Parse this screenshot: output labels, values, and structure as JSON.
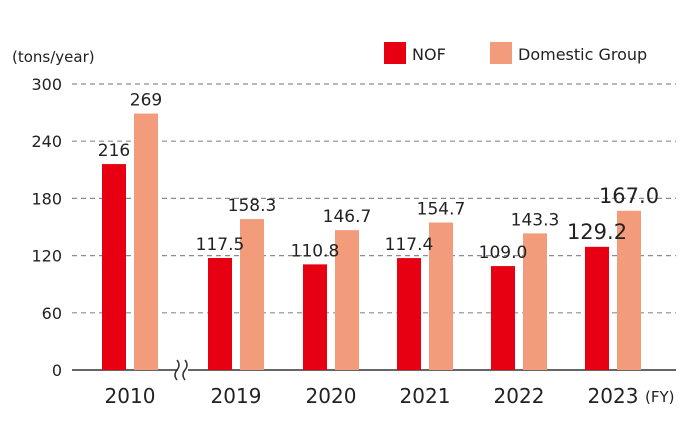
{
  "chart_data": {
    "type": "bar",
    "ylabel": "(tons/year)",
    "xunit": "(FY)",
    "ylim": [
      0,
      300
    ],
    "yticks": [
      0,
      60,
      120,
      180,
      240,
      300
    ],
    "grid": "horizontal-dashed",
    "legend_position": "top-right",
    "categories": [
      "2010",
      "2019",
      "2020",
      "2021",
      "2022",
      "2023"
    ],
    "axis_break_after": "2010",
    "series": [
      {
        "name": "NOF",
        "color": "#e60012",
        "values": [
          216,
          117.5,
          110.8,
          117.4,
          109.0,
          129.2
        ],
        "labels": [
          "216",
          "117.5",
          "110.8",
          "117.4",
          "109.0",
          "129.2"
        ]
      },
      {
        "name": "Domestic Group",
        "color": "#f29c7c",
        "values": [
          269,
          158.3,
          146.7,
          154.7,
          143.3,
          167.0
        ],
        "labels": [
          "269",
          "158.3",
          "146.7",
          "154.7",
          "143.3",
          "167.0"
        ]
      }
    ]
  }
}
